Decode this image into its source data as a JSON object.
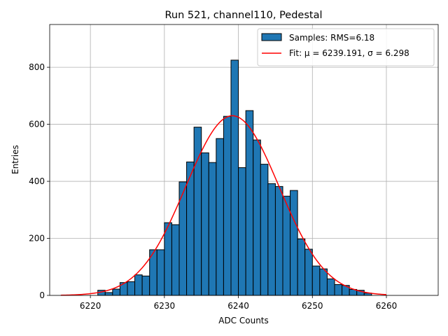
{
  "chart_data": {
    "type": "histogram",
    "title": "Run 521, channel110, Pedestal",
    "xlabel": "ADC Counts",
    "ylabel": "Entries",
    "xlim": [
      6214.5,
      6267
    ],
    "ylim": [
      0,
      950
    ],
    "grid": true,
    "xticks": [
      6220,
      6230,
      6240,
      6250,
      6260
    ],
    "yticks": [
      0,
      200,
      400,
      600,
      800
    ],
    "bin_width": 1,
    "bin_start": 6221,
    "bar_color": "#1f77b4",
    "fit_color": "#ff0000",
    "counts": [
      18,
      10,
      22,
      45,
      48,
      72,
      68,
      160,
      160,
      255,
      248,
      398,
      468,
      590,
      500,
      466,
      550,
      628,
      825,
      448,
      648,
      545,
      460,
      392,
      382,
      348,
      368,
      198,
      162,
      103,
      93,
      58,
      38,
      35,
      21,
      18,
      8
    ],
    "fit": {
      "mu": 6239.191,
      "sigma": 6.298,
      "amplitude": 630,
      "x_range": [
        6216,
        6260
      ]
    },
    "legend": {
      "position": "top-right",
      "entries": [
        {
          "label": "Samples: RMS=6.18",
          "kind": "patch"
        },
        {
          "label": "Fit: μ = 6239.191, σ = 6.298",
          "kind": "line"
        }
      ]
    }
  }
}
